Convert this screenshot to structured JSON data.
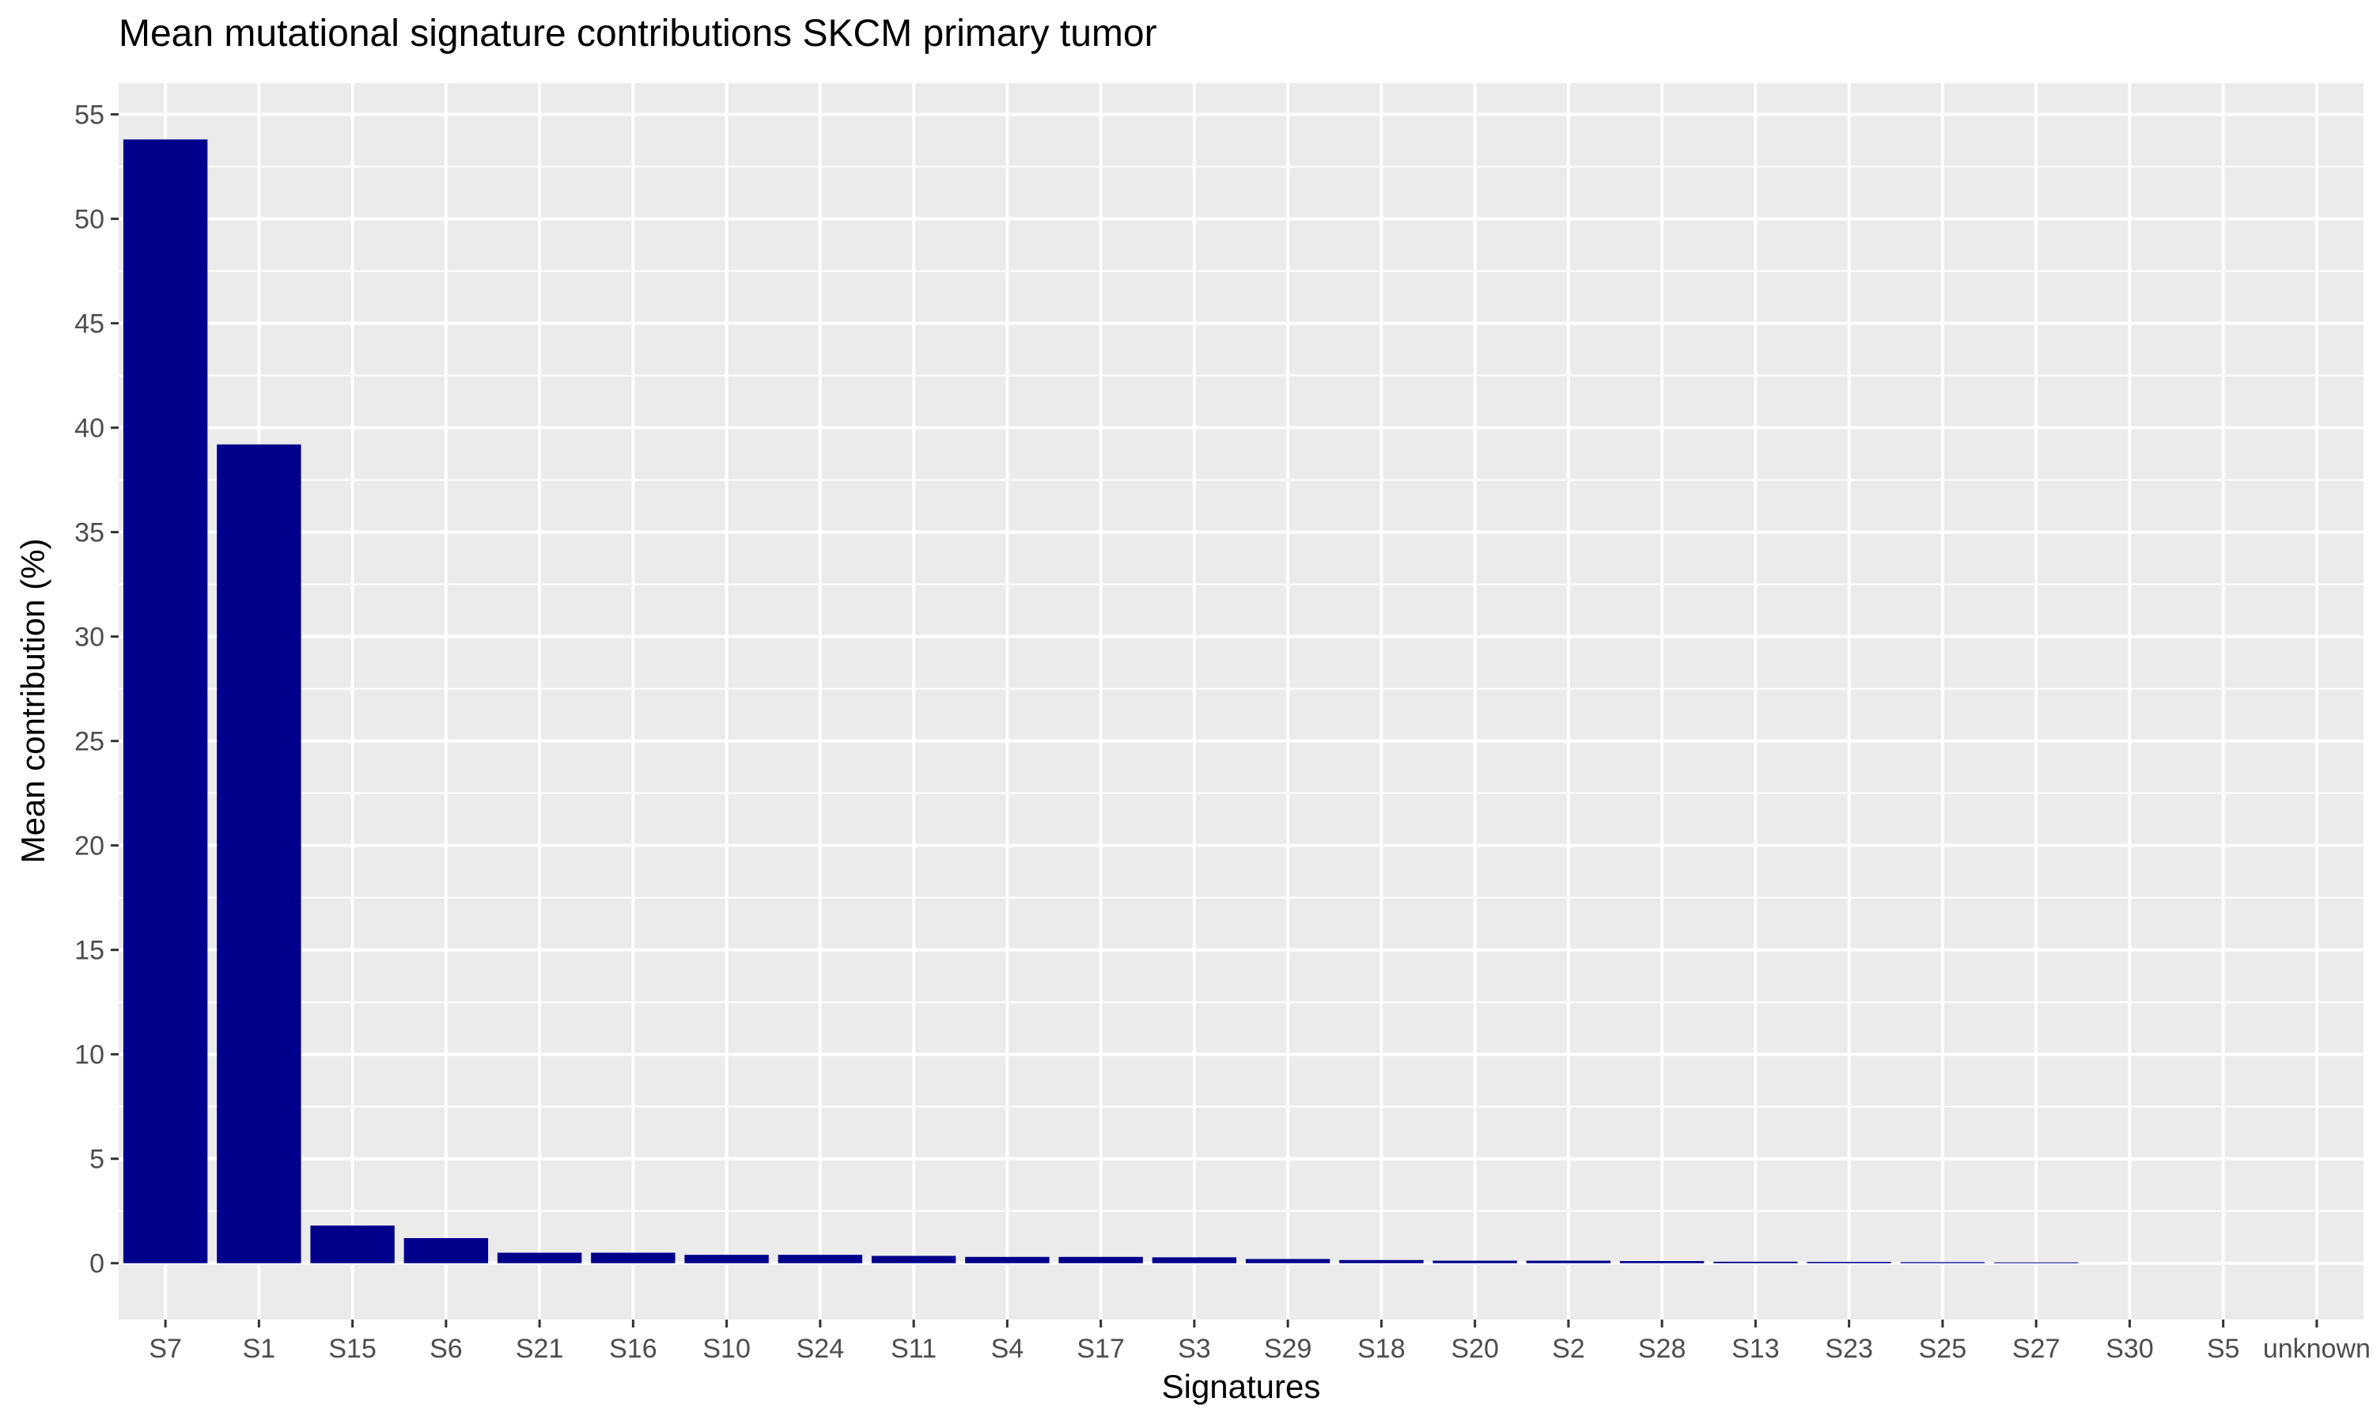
{
  "chart_data": {
    "type": "bar",
    "title": "Mean mutational signature contributions SKCM primary tumor",
    "xlabel": "Signatures",
    "ylabel": "Mean contribution (%)",
    "categories": [
      "S7",
      "S1",
      "S15",
      "S6",
      "S21",
      "S16",
      "S10",
      "S24",
      "S11",
      "S4",
      "S17",
      "S3",
      "S29",
      "S18",
      "S20",
      "S2",
      "S28",
      "S13",
      "S23",
      "S25",
      "S27",
      "S30",
      "S5",
      "unknown"
    ],
    "values": [
      53.8,
      39.2,
      1.8,
      1.2,
      0.5,
      0.5,
      0.4,
      0.4,
      0.35,
      0.3,
      0.3,
      0.28,
      0.2,
      0.15,
      0.12,
      0.12,
      0.1,
      0.07,
      0.06,
      0.05,
      0.04,
      0,
      0,
      0
    ],
    "yticks": [
      0,
      5,
      10,
      15,
      20,
      25,
      30,
      35,
      40,
      45,
      50,
      55
    ],
    "ylim": [
      -2.7,
      56.5
    ],
    "grid": true,
    "legend": "none",
    "colors": {
      "bar": "#00008B",
      "panel": "#EBEBEB",
      "grid": "#FFFFFF",
      "tick_text": "#4D4D4D",
      "tick_mark": "#333333"
    }
  }
}
